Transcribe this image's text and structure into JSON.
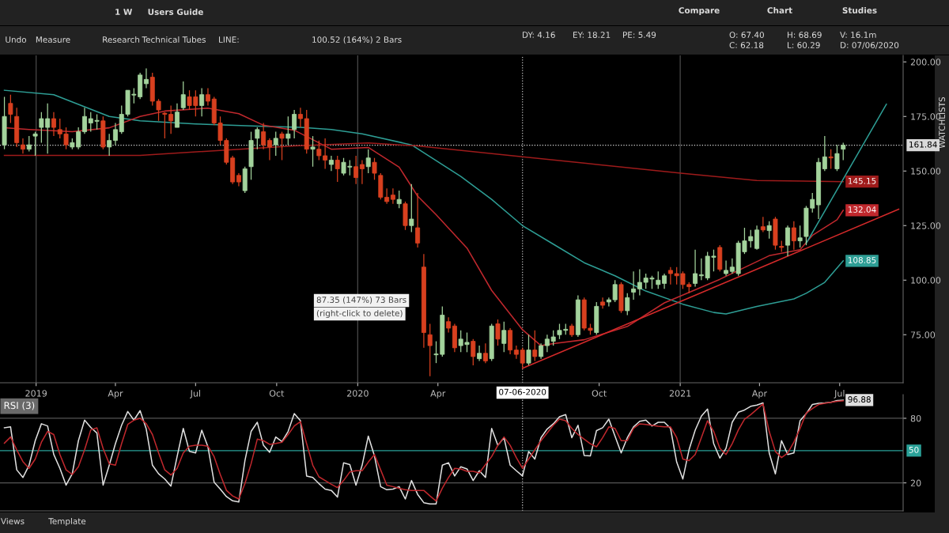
{
  "chart_data": [
    {
      "type": "candlestick",
      "x": [
        "2018-11-26",
        "2018-12-03",
        "2018-12-10",
        "2018-12-17",
        "2018-12-24",
        "2018-12-31",
        "2019-01-07",
        "2019-01-14",
        "2019-01-21",
        "2019-01-28",
        "2019-02-04",
        "2019-02-11",
        "2019-02-18",
        "2019-02-25",
        "2019-03-04",
        "2019-03-11",
        "2019-03-18",
        "2019-03-25",
        "2019-04-01",
        "2019-04-08",
        "2019-04-15",
        "2019-04-22",
        "2019-04-29",
        "2019-05-06",
        "2019-05-13",
        "2019-05-20",
        "2019-05-27",
        "2019-06-03",
        "2019-06-10",
        "2019-06-17",
        "2019-06-24",
        "2019-07-01",
        "2019-07-08",
        "2019-07-15",
        "2019-07-22",
        "2019-07-29",
        "2019-08-05",
        "2019-08-12",
        "2019-08-19",
        "2019-08-26",
        "2019-09-02",
        "2019-09-09",
        "2019-09-16",
        "2019-09-23",
        "2019-09-30",
        "2019-10-07",
        "2019-10-14",
        "2019-10-21",
        "2019-10-28",
        "2019-11-04",
        "2019-11-11",
        "2019-11-18",
        "2019-11-25",
        "2019-12-02",
        "2019-12-09",
        "2019-12-16",
        "2019-12-23",
        "2019-12-30",
        "2020-01-06",
        "2020-01-13",
        "2020-01-20",
        "2020-01-27",
        "2020-02-03",
        "2020-02-10",
        "2020-02-17",
        "2020-02-24",
        "2020-03-02",
        "2020-03-09",
        "2020-03-16",
        "2020-03-23",
        "2020-03-30",
        "2020-04-06",
        "2020-04-13",
        "2020-04-20",
        "2020-04-27",
        "2020-05-04",
        "2020-05-11",
        "2020-05-18",
        "2020-05-25",
        "2020-06-01",
        "2020-06-08",
        "2020-06-15",
        "2020-06-22",
        "2020-06-29",
        "2020-07-06",
        "2020-07-13",
        "2020-07-20",
        "2020-07-27",
        "2020-08-03",
        "2020-08-10",
        "2020-08-17",
        "2020-08-24",
        "2020-08-31",
        "2020-09-07",
        "2020-09-14",
        "2020-09-21",
        "2020-09-28",
        "2020-10-05",
        "2020-10-12",
        "2020-10-19",
        "2020-10-26",
        "2020-11-02",
        "2020-11-09",
        "2020-11-16",
        "2020-11-23",
        "2020-11-30",
        "2020-12-07",
        "2020-12-14",
        "2020-12-21",
        "2020-12-28",
        "2021-01-04",
        "2021-01-11",
        "2021-01-18",
        "2021-01-25",
        "2021-02-01",
        "2021-02-08",
        "2021-02-15",
        "2021-02-22",
        "2021-03-01",
        "2021-03-08",
        "2021-03-15",
        "2021-03-22",
        "2021-03-29",
        "2021-04-05",
        "2021-04-12",
        "2021-04-19",
        "2021-04-26",
        "2021-05-03",
        "2021-05-10",
        "2021-05-17",
        "2021-05-24",
        "2021-05-31",
        "2021-06-07",
        "2021-06-14",
        "2021-06-21",
        "2021-06-28",
        "2021-07-05"
      ],
      "ohlc": [
        [
          162,
          184,
          160,
          175
        ],
        [
          181,
          185,
          172,
          176
        ],
        [
          175,
          179,
          161,
          163
        ],
        [
          162,
          165,
          158,
          160
        ],
        [
          160,
          166,
          159,
          162
        ],
        [
          166,
          168,
          157,
          167
        ],
        [
          170,
          177,
          163,
          174
        ],
        [
          170,
          181,
          158,
          174
        ],
        [
          174,
          177,
          166,
          170
        ],
        [
          169,
          174,
          165,
          167
        ],
        [
          167,
          170,
          160,
          162
        ],
        [
          161,
          165,
          160,
          163
        ],
        [
          161,
          170,
          160,
          168
        ],
        [
          168,
          179,
          167,
          175
        ],
        [
          172,
          177,
          168,
          174
        ],
        [
          172.8,
          176,
          169,
          173.2
        ],
        [
          173,
          175,
          160,
          161
        ],
        [
          161,
          167,
          157,
          164
        ],
        [
          164,
          172,
          162,
          169
        ],
        [
          168,
          180,
          167,
          176
        ],
        [
          176,
          187,
          175,
          187
        ],
        [
          184.8,
          188,
          181,
          185.2
        ],
        [
          184,
          195,
          183,
          194
        ],
        [
          190,
          197,
          188,
          192
        ],
        [
          193,
          195,
          180,
          182
        ],
        [
          182,
          183,
          173,
          178
        ],
        [
          176.5,
          177,
          165,
          176
        ],
        [
          176,
          180,
          167,
          173
        ],
        [
          170,
          181,
          170,
          177
        ],
        [
          179,
          191,
          178,
          185
        ],
        [
          184,
          187,
          178,
          180
        ],
        [
          184,
          187,
          175,
          180
        ],
        [
          180,
          188,
          175,
          185
        ],
        [
          185,
          188,
          180,
          182
        ],
        [
          183,
          184,
          171,
          172
        ],
        [
          172,
          175,
          162,
          164
        ],
        [
          164,
          165,
          153,
          154
        ],
        [
          156,
          157,
          144,
          145
        ],
        [
          148,
          149,
          143,
          145
        ],
        [
          141,
          152,
          140,
          151
        ],
        [
          152,
          168,
          146,
          164
        ],
        [
          165,
          170,
          160,
          169
        ],
        [
          168,
          172,
          160,
          162
        ],
        [
          164,
          165,
          155,
          161
        ],
        [
          162,
          168,
          157,
          165
        ],
        [
          167,
          168,
          155,
          165
        ],
        [
          165,
          175,
          162,
          167
        ],
        [
          169,
          178,
          165,
          176
        ],
        [
          176,
          179,
          170,
          174
        ],
        [
          174,
          178,
          158,
          160
        ],
        [
          160,
          166,
          152,
          161
        ],
        [
          160,
          164,
          155,
          157
        ],
        [
          157,
          165,
          151,
          155
        ],
        [
          153,
          157,
          150,
          155
        ],
        [
          155,
          157,
          145,
          151
        ],
        [
          149,
          156,
          148,
          154
        ],
        [
          151.8,
          155,
          148,
          152.2
        ],
        [
          152,
          157,
          144,
          147
        ],
        [
          153,
          155,
          144,
          151
        ],
        [
          152,
          160,
          149,
          156
        ],
        [
          154,
          156,
          146,
          149
        ],
        [
          148,
          149,
          137,
          138
        ],
        [
          138,
          142,
          135,
          136
        ],
        [
          139,
          142,
          135,
          137
        ],
        [
          135,
          141,
          133,
          137
        ],
        [
          135,
          136,
          123,
          125
        ],
        [
          125,
          144,
          122,
          128
        ],
        [
          124,
          140,
          115,
          117
        ],
        [
          106,
          112,
          69,
          76
        ],
        [
          75,
          80,
          56,
          70
        ],
        [
          65.8,
          72,
          62,
          66.2
        ],
        [
          66,
          88,
          65,
          84
        ],
        [
          81,
          83,
          76,
          78
        ],
        [
          79,
          80,
          67,
          69
        ],
        [
          70,
          77,
          67,
          73
        ],
        [
          70.5,
          76,
          67,
          71.5
        ],
        [
          72,
          73,
          61,
          65
        ],
        [
          64,
          70,
          63,
          66.5
        ],
        [
          66.5,
          71,
          62,
          63
        ],
        [
          64,
          80,
          63,
          79
        ],
        [
          80,
          82,
          70,
          73
        ],
        [
          71,
          81,
          67,
          77
        ],
        [
          77,
          78,
          66,
          68
        ],
        [
          68,
          70,
          64,
          66
        ],
        [
          68,
          69,
          60,
          62
        ],
        [
          62,
          75,
          61,
          68
        ],
        [
          68,
          77,
          63,
          65
        ],
        [
          65,
          71,
          64,
          70
        ],
        [
          70,
          75,
          67,
          73
        ],
        [
          72,
          77,
          70,
          74
        ],
        [
          75,
          80,
          73,
          77
        ],
        [
          77,
          80,
          75,
          77.5
        ],
        [
          79,
          80,
          74,
          75
        ],
        [
          75,
          93,
          74,
          91
        ],
        [
          91,
          92,
          77,
          78
        ],
        [
          78,
          80,
          75,
          77
        ],
        [
          76,
          90,
          75,
          88
        ],
        [
          90,
          92,
          87,
          88.5
        ],
        [
          90,
          92,
          88,
          91
        ],
        [
          91,
          100,
          90,
          98
        ],
        [
          98,
          99,
          85,
          86
        ],
        [
          86,
          94,
          84,
          92
        ],
        [
          94.5,
          104,
          91,
          96
        ],
        [
          96,
          105,
          93,
          99
        ],
        [
          99,
          103,
          96,
          101
        ],
        [
          100.5,
          102,
          96,
          101
        ],
        [
          98,
          104,
          96,
          100
        ],
        [
          98.5,
          103,
          96,
          102
        ],
        [
          104.5,
          106,
          98,
          103
        ],
        [
          103,
          106,
          98,
          102
        ],
        [
          103,
          104,
          96,
          98
        ],
        [
          98,
          99,
          94,
          97
        ],
        [
          98.5,
          114,
          97,
          103
        ],
        [
          102,
          110,
          100,
          102.5
        ],
        [
          101,
          113,
          100,
          111
        ],
        [
          110.5,
          114,
          104,
          111
        ],
        [
          115,
          116,
          104,
          105
        ],
        [
          103,
          109,
          102,
          104.5
        ],
        [
          104,
          110,
          103,
          106
        ],
        [
          103,
          118,
          102,
          117
        ],
        [
          113,
          124,
          112,
          118
        ],
        [
          118,
          123,
          115,
          120
        ],
        [
          114.5,
          125,
          114,
          123
        ],
        [
          124.5,
          129,
          122,
          123
        ],
        [
          122.7,
          127,
          119,
          125
        ],
        [
          128,
          129,
          114,
          116
        ],
        [
          115.5,
          118,
          113,
          115
        ],
        [
          116,
          125,
          111,
          124
        ],
        [
          124,
          127,
          114,
          118
        ],
        [
          118,
          125,
          115,
          119.4
        ],
        [
          120,
          134,
          116,
          133
        ],
        [
          133,
          140,
          131,
          137
        ],
        [
          134.5,
          156,
          128,
          154
        ],
        [
          151,
          166,
          150,
          156.5
        ],
        [
          156.5,
          160,
          151,
          156
        ],
        [
          151,
          162,
          150,
          158
        ],
        [
          160,
          163,
          155,
          161.84
        ]
      ],
      "colors": [
        "#a3d39c",
        "#d8401f",
        "#d8401f",
        "#d8401f",
        "#a3d39c",
        "#a3d39c",
        "#a3d39c",
        "#a3d39c",
        "#d8401f",
        "#d8401f",
        "#d8401f",
        "#a3d39c",
        "#a3d39c",
        "#a3d39c",
        "#a3d39c",
        "#a3d39c",
        "#d8401f",
        "#a3d39c",
        "#a3d39c",
        "#a3d39c",
        "#a3d39c",
        "#a3d39c",
        "#a3d39c",
        "#a3d39c",
        "#d8401f",
        "#d8401f",
        "#d8401f",
        "#d8401f",
        "#a3d39c",
        "#a3d39c",
        "#d8401f",
        "#d8401f",
        "#a3d39c",
        "#d8401f",
        "#d8401f",
        "#d8401f",
        "#d8401f",
        "#d8401f",
        "#d8401f",
        "#a3d39c",
        "#a3d39c",
        "#a3d39c",
        "#d8401f",
        "#d8401f",
        "#a3d39c",
        "#d8401f",
        "#a3d39c",
        "#a3d39c",
        "#d8401f",
        "#d8401f",
        "#a3d39c",
        "#d8401f",
        "#d8401f",
        "#a3d39c",
        "#d8401f",
        "#a3d39c",
        "#a3d39c",
        "#d8401f",
        "#d8401f",
        "#a3d39c",
        "#d8401f",
        "#d8401f",
        "#d8401f",
        "#d8401f",
        "#a3d39c",
        "#d8401f",
        "#a3d39c",
        "#d8401f",
        "#d8401f",
        "#d8401f",
        "#a3d39c",
        "#a3d39c",
        "#d8401f",
        "#d8401f",
        "#a3d39c",
        "#a3d39c",
        "#d8401f",
        "#a3d39c",
        "#d8401f",
        "#a3d39c",
        "#d8401f",
        "#a3d39c",
        "#d8401f",
        "#d8401f",
        "#d8401f",
        "#a3d39c",
        "#d8401f",
        "#a3d39c",
        "#a3d39c",
        "#a3d39c",
        "#a3d39c",
        "#a3d39c",
        "#d8401f",
        "#a3d39c",
        "#d8401f",
        "#d8401f",
        "#a3d39c",
        "#d8401f",
        "#a3d39c",
        "#a3d39c",
        "#d8401f",
        "#a3d39c",
        "#a3d39c",
        "#a3d39c",
        "#a3d39c",
        "#a3d39c",
        "#a3d39c",
        "#a3d39c",
        "#d8401f",
        "#d8401f",
        "#d8401f",
        "#d8401f",
        "#a3d39c",
        "#a3d39c",
        "#a3d39c",
        "#a3d39c",
        "#d8401f",
        "#a3d39c",
        "#a3d39c",
        "#a3d39c",
        "#a3d39c",
        "#a3d39c",
        "#a3d39c",
        "#d8401f",
        "#a3d39c",
        "#d8401f",
        "#d8401f",
        "#a3d39c",
        "#d8401f",
        "#a3d39c",
        "#a3d39c",
        "#a3d39c",
        "#a3d39c",
        "#a3d39c",
        "#d8401f",
        "#a3d39c",
        "#a3d39c"
      ],
      "series": [
        {
          "type": "line",
          "color": "#2e9e95",
          "x": [
            "2018-11-26",
            "2019-01-21",
            "2019-03-25",
            "2019-04-29",
            "2019-07-01",
            "2019-09-16",
            "2019-10-28",
            "2019-12-02",
            "2020-01-06",
            "2020-03-02",
            "2020-04-27",
            "2020-06-01",
            "2020-07-06",
            "2020-08-10",
            "2020-09-14",
            "2020-10-19",
            "2020-11-23",
            "2021-01-04",
            "2021-02-08",
            "2021-02-22",
            "2021-03-29",
            "2021-05-10",
            "2021-05-24",
            "2021-06-14",
            "2021-07-05"
          ],
          "values": [
            187,
            185,
            175,
            173,
            171.6,
            170.5,
            170,
            169,
            167,
            162,
            147.5,
            137,
            125,
            116.5,
            108,
            102,
            95,
            89,
            85.2,
            84.5,
            88,
            91.4,
            94,
            99,
            108.85
          ],
          "value_labels": [
            null,
            null,
            null,
            null,
            null,
            null,
            null,
            null,
            null,
            null,
            null,
            null,
            null,
            null,
            null,
            null,
            null,
            null,
            null,
            null,
            null,
            null,
            null,
            null,
            "108.85"
          ]
        },
        {
          "type": "line",
          "color": "#c0282d",
          "x": [
            "2018-11-26",
            "2018-12-24",
            "2019-02-11",
            "2019-03-25",
            "2019-04-29",
            "2019-05-27",
            "2019-07-15",
            "2019-08-19",
            "2019-09-16",
            "2019-10-21",
            "2019-12-02",
            "2020-01-13",
            "2020-02-17",
            "2020-03-09",
            "2020-03-30",
            "2020-05-04",
            "2020-06-01",
            "2020-07-06",
            "2020-07-27",
            "2020-08-10",
            "2020-09-14",
            "2020-11-02",
            "2020-12-14",
            "2021-02-15",
            "2021-04-12",
            "2021-05-17",
            "2021-05-31",
            "2021-06-28",
            "2021-07-05"
          ],
          "values": [
            169.8,
            169,
            168,
            169.8,
            175,
            177.5,
            178.8,
            176.3,
            171,
            168.7,
            160,
            160.8,
            151.8,
            138.5,
            130,
            114.7,
            95.3,
            77.3,
            70,
            70.9,
            72.7,
            78.8,
            89.6,
            100.4,
            111.2,
            114,
            120.5,
            127.7,
            132.04
          ],
          "value_labels": [
            null,
            null,
            null,
            null,
            null,
            null,
            null,
            null,
            null,
            null,
            null,
            null,
            null,
            null,
            null,
            null,
            null,
            null,
            null,
            null,
            null,
            null,
            null,
            null,
            null,
            null,
            null,
            null,
            "132.04"
          ]
        },
        {
          "type": "line",
          "color": "#9e1b1b",
          "x": [
            "2018-11-26",
            "2019-04-29",
            "2019-10-21",
            "2020-01-13",
            "2020-03-09",
            "2020-07-06",
            "2020-09-14",
            "2021-01-04",
            "2021-03-29",
            "2021-07-05"
          ],
          "values": [
            157.2,
            157.2,
            161.5,
            162.9,
            161.5,
            156.5,
            153.6,
            148.9,
            145.7,
            145.15
          ],
          "value_labels": [
            null,
            null,
            null,
            null,
            null,
            null,
            null,
            null,
            null,
            "145.15"
          ]
        },
        {
          "type": "line",
          "color": "#d42a2a",
          "x": [
            "2020-07-06",
            "2021-09-06"
          ],
          "values": [
            59.6,
            132.5
          ]
        },
        {
          "type": "line",
          "color": "#2e9e95",
          "x": [
            "2021-05-24",
            "2021-08-23"
          ],
          "values": [
            116.9,
            180.6
          ]
        }
      ],
      "xlim": [
        "2018-11-21",
        "2021-09-11"
      ],
      "xticks": [
        {
          "value": "2019-01-01",
          "label": "2019"
        },
        {
          "value": "2019-04-01",
          "label": "Apr"
        },
        {
          "value": "2019-07-01",
          "label": "Jul"
        },
        {
          "value": "2019-10-01",
          "label": "Oct"
        },
        {
          "value": "2020-01-01",
          "label": "2020"
        },
        {
          "value": "2020-04-01",
          "label": "Apr"
        },
        {
          "value": "2020-10-01",
          "label": "Oct"
        },
        {
          "value": "2021-01-01",
          "label": "2021"
        },
        {
          "value": "2021-04-01",
          "label": "Apr"
        },
        {
          "value": "2021-07-01",
          "label": "Jul"
        }
      ],
      "ylim": [
        53,
        203
      ],
      "yticks": [
        {
          "value": 75,
          "label": "75.00"
        },
        {
          "value": 100,
          "label": "100.00"
        },
        {
          "value": 125,
          "label": "125.00"
        },
        {
          "value": 150,
          "label": "150.00"
        },
        {
          "value": 175,
          "label": "175.00"
        },
        {
          "value": 200,
          "label": "200.00"
        }
      ],
      "ref_lines": [
        {
          "axis": "x",
          "value": "2019-01-01",
          "color": "#4a4a4a",
          "line_style": "solid"
        },
        {
          "axis": "x",
          "value": "2020-01-01",
          "color": "#4a4a4a",
          "line_style": "solid"
        },
        {
          "axis": "x",
          "value": "2021-01-01",
          "color": "#4a4a4a",
          "line_style": "solid"
        },
        {
          "axis": "x",
          "value": "2020-07-06",
          "label": "07-06-2020",
          "color": "#bbbbbb",
          "line_style": "dotted"
        },
        {
          "axis": "y",
          "value": 161.84,
          "label": "161.84",
          "color": "#d9d9d9",
          "line_style": "dotted"
        }
      ],
      "annotations": [
        "1 W",
        "Users Guide",
        "Compare",
        "Chart",
        "Studies",
        "Undo",
        "Measure",
        "Research",
        "Technical Tubes",
        "LINE:",
        "100.52 (164%) 2 Bars",
        "DY: 4.16",
        "EY: 18.21",
        "PE: 5.49",
        "O: 67.40",
        "C: 62.18",
        "H: 68.69",
        "L: 60.29",
        "V: 16.1m",
        "D: 07/06/2020",
        "WATCHLISTS",
        "Views",
        "Template",
        "87.35 (147%) 73 Bars",
        "(right-click to delete)"
      ],
      "grid": false
    },
    {
      "type": "line",
      "title": "RSI (3)",
      "x": [
        "2018-11-26",
        "2018-12-03",
        "2018-12-10",
        "2018-12-17",
        "2018-12-24",
        "2018-12-31",
        "2019-01-07",
        "2019-01-14",
        "2019-01-21",
        "2019-01-28",
        "2019-02-04",
        "2019-02-11",
        "2019-02-18",
        "2019-02-25",
        "2019-03-04",
        "2019-03-11",
        "2019-03-18",
        "2019-03-25",
        "2019-04-01",
        "2019-04-08",
        "2019-04-15",
        "2019-04-22",
        "2019-04-29",
        "2019-05-06",
        "2019-05-13",
        "2019-05-20",
        "2019-05-27",
        "2019-06-03",
        "2019-06-10",
        "2019-06-17",
        "2019-06-24",
        "2019-07-01",
        "2019-07-08",
        "2019-07-15",
        "2019-07-22",
        "2019-07-29",
        "2019-08-05",
        "2019-08-12",
        "2019-08-19",
        "2019-08-26",
        "2019-09-02",
        "2019-09-09",
        "2019-09-16",
        "2019-09-23",
        "2019-09-30",
        "2019-10-07",
        "2019-10-14",
        "2019-10-21",
        "2019-10-28",
        "2019-11-04",
        "2019-11-11",
        "2019-11-18",
        "2019-11-25",
        "2019-12-02",
        "2019-12-09",
        "2019-12-16",
        "2019-12-23",
        "2019-12-30",
        "2020-01-06",
        "2020-01-13",
        "2020-01-20",
        "2020-01-27",
        "2020-02-03",
        "2020-02-10",
        "2020-02-17",
        "2020-02-24",
        "2020-03-02",
        "2020-03-09",
        "2020-03-16",
        "2020-03-23",
        "2020-03-30",
        "2020-04-06",
        "2020-04-13",
        "2020-04-20",
        "2020-04-27",
        "2020-05-04",
        "2020-05-11",
        "2020-05-18",
        "2020-05-25",
        "2020-06-01",
        "2020-06-08",
        "2020-06-15",
        "2020-06-22",
        "2020-06-29",
        "2020-07-06",
        "2020-07-13",
        "2020-07-20",
        "2020-07-27",
        "2020-08-03",
        "2020-08-10",
        "2020-08-17",
        "2020-08-24",
        "2020-08-31",
        "2020-09-07",
        "2020-09-14",
        "2020-09-21",
        "2020-09-28",
        "2020-10-05",
        "2020-10-12",
        "2020-10-19",
        "2020-10-26",
        "2020-11-02",
        "2020-11-09",
        "2020-11-16",
        "2020-11-23",
        "2020-11-30",
        "2020-12-07",
        "2020-12-14",
        "2020-12-21",
        "2020-12-28",
        "2021-01-04",
        "2021-01-11",
        "2021-01-18",
        "2021-01-25",
        "2021-02-01",
        "2021-02-08",
        "2021-02-15",
        "2021-02-22",
        "2021-03-01",
        "2021-03-08",
        "2021-03-15",
        "2021-03-22",
        "2021-03-29",
        "2021-04-05",
        "2021-04-12",
        "2021-04-19",
        "2021-04-26",
        "2021-05-03",
        "2021-05-10",
        "2021-05-17",
        "2021-05-24",
        "2021-05-31",
        "2021-06-07",
        "2021-06-14",
        "2021-06-21",
        "2021-06-28",
        "2021-07-05"
      ],
      "series": [
        {
          "color": "#e0e0e0",
          "values": [
            71.2,
            72.0,
            32.1,
            25.0,
            36.4,
            59.2,
            74.9,
            72.9,
            46.4,
            33.5,
            17.9,
            28.4,
            59.2,
            78.3,
            71.5,
            66.3,
            17.9,
            36.4,
            56.4,
            73.5,
            86.3,
            78.3,
            87.1,
            70.0,
            36.4,
            28.4,
            23.6,
            17.0,
            44.4,
            70.6,
            49.2,
            47.8,
            68.9,
            53.5,
            20.7,
            14.2,
            7.3,
            3.3,
            2.2,
            40.7,
            67.8,
            76.3,
            54.9,
            48.4,
            62.6,
            58.3,
            67.8,
            84.3,
            77.7,
            26.4,
            25.0,
            19.3,
            14.2,
            13.0,
            6.8,
            38.7,
            37.0,
            17.9,
            36.4,
            63.5,
            45.0,
            16.5,
            13.6,
            14.2,
            16.5,
            5.0,
            22.2,
            9.3,
            1.6,
            0.5,
            0.5,
            36.4,
            38.7,
            26.4,
            35.0,
            33.0,
            22.2,
            31.3,
            25.0,
            70.6,
            54.9,
            62.0,
            36.4,
            31.3,
            26.4,
            49.2,
            42.1,
            62.0,
            70.0,
            74.9,
            81.4,
            83.4,
            62.0,
            73.5,
            45.5,
            45.0,
            68.6,
            71.2,
            79.2,
            63.5,
            47.8,
            62.0,
            72.0,
            77.2,
            78.3,
            72.9,
            76.3,
            76.3,
            70.6,
            39.3,
            23.6,
            50.7,
            68.9,
            82.0,
            88.6,
            56.4,
            43.0,
            52.1,
            76.3,
            85.7,
            87.7,
            91.1,
            92.3,
            94.3,
            47.8,
            28.4,
            59.2,
            46.4,
            47.8,
            77.7,
            84.3,
            92.8,
            94.0,
            94.3,
            94.8,
            96.5,
            96.88
          ],
          "value_labels": [
            null,
            null,
            null,
            null,
            null,
            null,
            null,
            null,
            null,
            null,
            null,
            null,
            null,
            null,
            null,
            null,
            null,
            null,
            null,
            null,
            null,
            null,
            null,
            null,
            null,
            null,
            null,
            null,
            null,
            null,
            null,
            null,
            null,
            null,
            null,
            null,
            null,
            null,
            null,
            null,
            null,
            null,
            null,
            null,
            null,
            null,
            null,
            null,
            null,
            null,
            null,
            null,
            null,
            null,
            null,
            null,
            null,
            null,
            null,
            null,
            null,
            null,
            null,
            null,
            null,
            null,
            null,
            null,
            null,
            null,
            null,
            null,
            null,
            null,
            null,
            null,
            null,
            null,
            null,
            null,
            null,
            null,
            null,
            null,
            null,
            null,
            null,
            null,
            null,
            null,
            null,
            null,
            null,
            null,
            null,
            null,
            null,
            null,
            null,
            null,
            null,
            null,
            null,
            null,
            null,
            null,
            null,
            null,
            null,
            null,
            null,
            null,
            null,
            null,
            null,
            null,
            null,
            null,
            null,
            null,
            null,
            null,
            null,
            null,
            null,
            null,
            null,
            null,
            null,
            null,
            null,
            null,
            null,
            null,
            null,
            null,
            "96.88"
          ]
        },
        {
          "color": "#c0282d",
          "values": [
            56.9,
            62.6,
            50.7,
            39.8,
            33.5,
            42.1,
            57.8,
            67.8,
            64.9,
            46.4,
            32.1,
            27.8,
            35.0,
            50.7,
            69.2,
            71.2,
            52.1,
            37.8,
            36.4,
            56.4,
            74.3,
            78.3,
            80.0,
            74.9,
            64.9,
            47.8,
            32.1,
            27.3,
            33.5,
            47.8,
            54.1,
            54.9,
            54.9,
            54.1,
            44.4,
            27.8,
            13.0,
            7.9,
            5.0,
            19.3,
            37.8,
            60.6,
            59.2,
            55.8,
            56.6,
            57.8,
            64.9,
            72.9,
            76.9,
            56.4,
            36.4,
            25.6,
            22.2,
            18.7,
            15.6,
            22.2,
            30.1,
            31.3,
            31.3,
            39.3,
            46.4,
            32.1,
            17.9,
            16.5,
            15.0,
            13.6,
            13.0,
            13.0,
            13.0,
            7.9,
            3.1,
            15.0,
            25.0,
            33.5,
            33.0,
            30.7,
            30.7,
            29.3,
            37.0,
            44.4,
            54.9,
            62.6,
            54.9,
            43.5,
            33.5,
            42.1,
            50.7,
            59.2,
            66.3,
            73.5,
            79.2,
            77.7,
            70.6,
            64.9,
            60.6,
            56.4,
            53.5,
            62.0,
            72.0,
            70.6,
            59.2,
            59.2,
            70.6,
            74.9,
            74.3,
            73.5,
            72.6,
            72.0,
            72.0,
            62.0,
            42.1,
            40.7,
            46.4,
            62.0,
            77.7,
            67.8,
            52.1,
            46.4,
            56.4,
            69.2,
            79.2,
            83.4,
            88.3,
            93.4,
            67.8,
            49.2,
            43.5,
            47.8,
            57.8,
            70.6,
            84.8,
            89.1,
            92.8,
            94.0,
            94.8,
            95.7,
            96.3
          ]
        }
      ],
      "xlim": [
        "2018-11-21",
        "2021-09-11"
      ],
      "ylim": [
        -6,
        102
      ],
      "yticks": [
        20,
        80
      ],
      "tick_labels": "y",
      "ref_lines": [
        {
          "axis": "y",
          "value": 80,
          "color": "#555555",
          "line_style": "solid"
        },
        {
          "axis": "y",
          "value": 20,
          "color": "#555555",
          "line_style": "solid"
        },
        {
          "axis": "y",
          "value": 50,
          "label": "50",
          "color": "#2aa198",
          "line_style": "solid"
        },
        {
          "axis": "x",
          "value": "2020-07-06",
          "color": "#bbbbbb",
          "line_style": "dotted"
        }
      ],
      "grid": false
    }
  ]
}
